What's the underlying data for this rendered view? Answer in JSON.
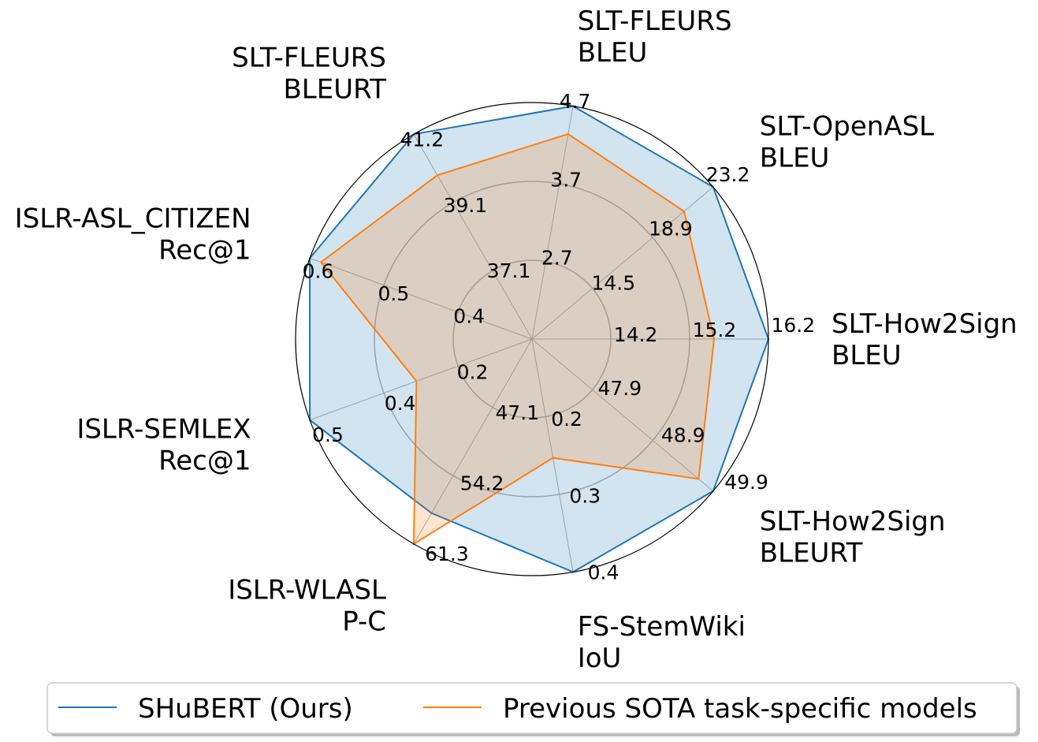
{
  "chart_data": {
    "type": "radar",
    "axes": [
      {
        "name": "SLT-How2Sign",
        "metric": "BLEU",
        "ticks": [
          "14.2",
          "15.2",
          "16.2"
        ]
      },
      {
        "name": "SLT-OpenASL",
        "metric": "BLEU",
        "ticks": [
          "14.5",
          "18.9",
          "23.2"
        ]
      },
      {
        "name": "SLT-FLEURS",
        "metric": "BLEU",
        "ticks": [
          "2.7",
          "3.7",
          "4.7"
        ]
      },
      {
        "name": "SLT-FLEURS",
        "metric": "BLEURT",
        "ticks": [
          "37.1",
          "39.1",
          "41.2"
        ]
      },
      {
        "name": "ISLR-ASL_CITIZEN",
        "metric": "Rec@1",
        "ticks": [
          "0.4",
          "0.5",
          "0.6"
        ]
      },
      {
        "name": "ISLR-SEMLEX",
        "metric": "Rec@1",
        "ticks": [
          "0.2",
          "0.4",
          "0.5"
        ]
      },
      {
        "name": "ISLR-WLASL",
        "metric": "P-C",
        "ticks": [
          "47.1",
          "54.2",
          "61.3"
        ]
      },
      {
        "name": "FS-StemWiki",
        "metric": "IoU",
        "ticks": [
          "0.2",
          "0.3",
          "0.4"
        ]
      },
      {
        "name": "SLT-How2Sign",
        "metric": "BLEURT",
        "ticks": [
          "47.9",
          "48.9",
          "49.9"
        ]
      }
    ],
    "series": [
      {
        "name": "SHuBERT (Ours)",
        "color": "#1f77b4",
        "values": [
          1.0,
          1.0,
          1.0,
          1.0,
          1.0,
          1.0,
          0.85,
          1.0,
          1.0
        ]
      },
      {
        "name": "Previous SOTA task-specific models",
        "color": "#ff7f0e",
        "values": [
          0.77,
          0.84,
          0.88,
          0.8,
          0.95,
          0.52,
          1.0,
          0.51,
          0.92
        ]
      }
    ],
    "radial_range": [
      0,
      1
    ],
    "grid": true,
    "legend_position": "bottom"
  }
}
